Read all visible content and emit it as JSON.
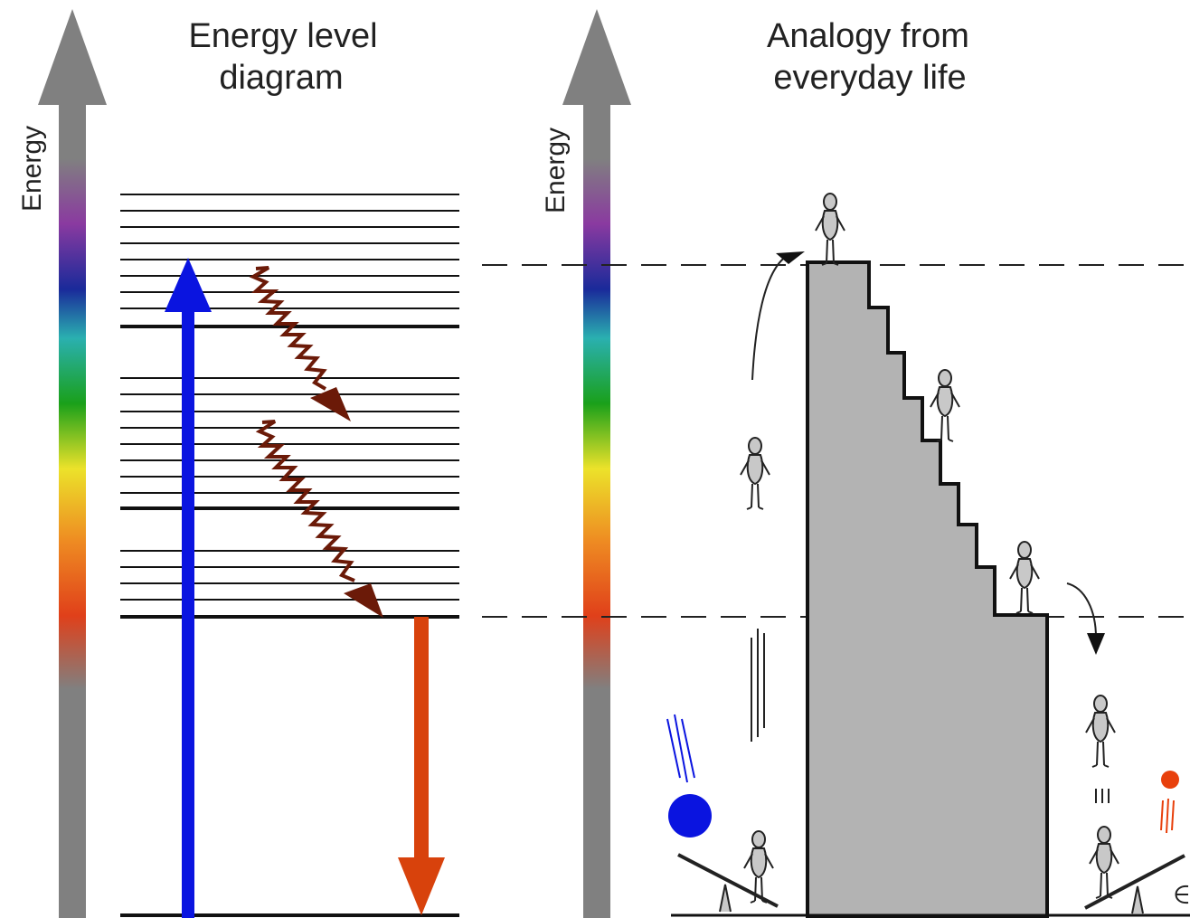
{
  "left_panel": {
    "title_line1": "Energy level",
    "title_line2": "diagram",
    "axis_label": "Energy"
  },
  "right_panel": {
    "title_line1": "Analogy from",
    "title_line2": "everyday life",
    "axis_label": "Energy"
  },
  "colors": {
    "absorption_arrow": "#0a14e0",
    "emission_arrow": "#d8420c",
    "relaxation_arrow": "#6b1a08",
    "axis_gray": "#808080",
    "staircase_fill": "#b3b3b3",
    "ball_blue": "#0a14e0",
    "ball_red": "#e8400c"
  },
  "icons": {
    "absorption": "blue-up-arrow-icon",
    "emission": "red-down-arrow-icon",
    "relaxation": "wavy-arrow-icon",
    "figures": "stick-figure-icon",
    "seesaw": "seesaw-icon",
    "ball": "ball-icon"
  }
}
